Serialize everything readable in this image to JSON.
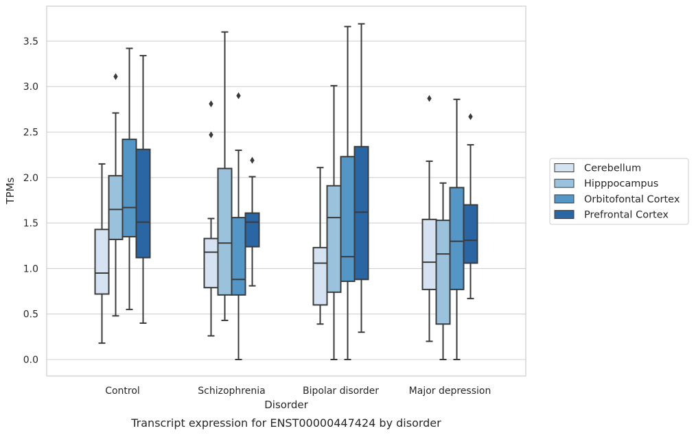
{
  "chart_data": {
    "type": "box",
    "title": "",
    "caption": "Transcript expression for ENST00000447424 by disorder",
    "xlabel": "Disorder",
    "ylabel": "TPMs",
    "ylim": [
      -0.18,
      3.9
    ],
    "yticks": [
      "0.0",
      "0.5",
      "1.0",
      "1.5",
      "2.0",
      "2.5",
      "3.0",
      "3.5"
    ],
    "ytick_values": [
      0,
      0.5,
      1.0,
      1.5,
      2.0,
      2.5,
      3.0,
      3.5
    ],
    "grid": true,
    "legend_position": "right",
    "categories": [
      "Control",
      "Schizophrenia",
      "Bipolar disorder",
      "Major depression"
    ],
    "series": [
      {
        "name": "Cerebellum",
        "color": "#d4e2f1",
        "boxes": [
          {
            "whislo": 0.18,
            "q1": 0.72,
            "med": 0.95,
            "q3": 1.43,
            "whishi": 2.15,
            "fliers": []
          },
          {
            "whislo": 0.26,
            "q1": 0.79,
            "med": 1.18,
            "q3": 1.33,
            "whishi": 1.55,
            "fliers": [
              2.47,
              2.81
            ]
          },
          {
            "whislo": 0.39,
            "q1": 0.6,
            "med": 1.06,
            "q3": 1.23,
            "whishi": 2.11,
            "fliers": []
          },
          {
            "whislo": 0.2,
            "q1": 0.77,
            "med": 1.07,
            "q3": 1.54,
            "whishi": 2.18,
            "fliers": [
              2.87
            ]
          }
        ]
      },
      {
        "name": "Hipppocampus",
        "color": "#9ac2dc",
        "boxes": [
          {
            "whislo": 0.48,
            "q1": 1.32,
            "med": 1.65,
            "q3": 2.02,
            "whishi": 2.71,
            "fliers": [
              3.11
            ]
          },
          {
            "whislo": 0.43,
            "q1": 0.71,
            "med": 1.28,
            "q3": 2.1,
            "whishi": 3.6,
            "fliers": []
          },
          {
            "whislo": 0.0,
            "q1": 0.74,
            "med": 1.56,
            "q3": 1.91,
            "whishi": 3.01,
            "fliers": []
          },
          {
            "whislo": 0.0,
            "q1": 0.39,
            "med": 1.16,
            "q3": 1.53,
            "whishi": 1.94,
            "fliers": []
          }
        ]
      },
      {
        "name": "Orbitofontal Cortex",
        "color": "#5497c6",
        "boxes": [
          {
            "whislo": 0.55,
            "q1": 1.35,
            "med": 1.67,
            "q3": 2.42,
            "whishi": 3.42,
            "fliers": []
          },
          {
            "whislo": 0.0,
            "q1": 0.71,
            "med": 0.88,
            "q3": 1.56,
            "whishi": 2.3,
            "fliers": [
              2.9
            ]
          },
          {
            "whislo": 0.0,
            "q1": 0.86,
            "med": 1.13,
            "q3": 2.23,
            "whishi": 3.66,
            "fliers": []
          },
          {
            "whislo": 0.0,
            "q1": 0.77,
            "med": 1.3,
            "q3": 1.89,
            "whishi": 2.86,
            "fliers": []
          }
        ]
      },
      {
        "name": "Prefrontal Cortex",
        "color": "#2a65a4",
        "boxes": [
          {
            "whislo": 0.4,
            "q1": 1.12,
            "med": 1.51,
            "q3": 2.31,
            "whishi": 3.34,
            "fliers": []
          },
          {
            "whislo": 0.81,
            "q1": 1.24,
            "med": 1.51,
            "q3": 1.61,
            "whishi": 2.01,
            "fliers": [
              2.19
            ]
          },
          {
            "whislo": 0.3,
            "q1": 0.88,
            "med": 1.62,
            "q3": 2.34,
            "whishi": 3.69,
            "fliers": []
          },
          {
            "whislo": 0.67,
            "q1": 1.06,
            "med": 1.31,
            "q3": 1.7,
            "whishi": 2.36,
            "fliers": [
              2.67
            ]
          }
        ]
      }
    ]
  }
}
